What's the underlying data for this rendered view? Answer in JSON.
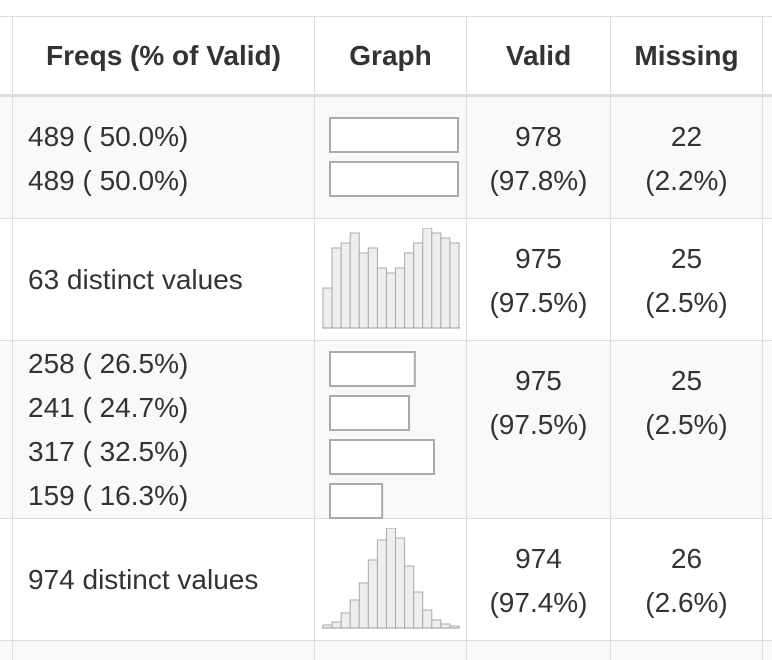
{
  "headers": {
    "freqs": "Freqs (% of Valid)",
    "graph": "Graph",
    "valid": "Valid",
    "missing": "Missing"
  },
  "rows": [
    {
      "freqs": [
        "489 ( 50.0%)",
        "489 ( 50.0%)"
      ],
      "graph_type": "bars",
      "bars": [
        50.0,
        50.0
      ],
      "valid": [
        "978",
        "(97.8%)"
      ],
      "missing": [
        "22",
        "(2.2%)"
      ]
    },
    {
      "freqs": [
        "63 distinct values"
      ],
      "graph_type": "histogram",
      "hist": [
        0.4,
        0.8,
        0.85,
        0.95,
        0.75,
        0.8,
        0.6,
        0.55,
        0.6,
        0.75,
        0.85,
        1.0,
        0.95,
        0.9,
        0.85
      ],
      "valid": [
        "975",
        "(97.5%)"
      ],
      "missing": [
        "25",
        "(2.5%)"
      ]
    },
    {
      "freqs": [
        "258 ( 26.5%)",
        "241 ( 24.7%)",
        "317 ( 32.5%)",
        "159 ( 16.3%)"
      ],
      "graph_type": "bars",
      "bars": [
        26.5,
        24.7,
        32.5,
        16.3
      ],
      "valid": [
        "975",
        "(97.5%)"
      ],
      "missing": [
        "25",
        "(2.5%)"
      ]
    },
    {
      "freqs": [
        "974 distinct values"
      ],
      "graph_type": "histogram",
      "hist": [
        0.03,
        0.06,
        0.15,
        0.28,
        0.45,
        0.68,
        0.88,
        1.0,
        0.9,
        0.62,
        0.36,
        0.18,
        0.08,
        0.04,
        0.02
      ],
      "valid": [
        "974",
        "(97.4%)"
      ],
      "missing": [
        "26",
        "(2.6%)"
      ]
    }
  ]
}
